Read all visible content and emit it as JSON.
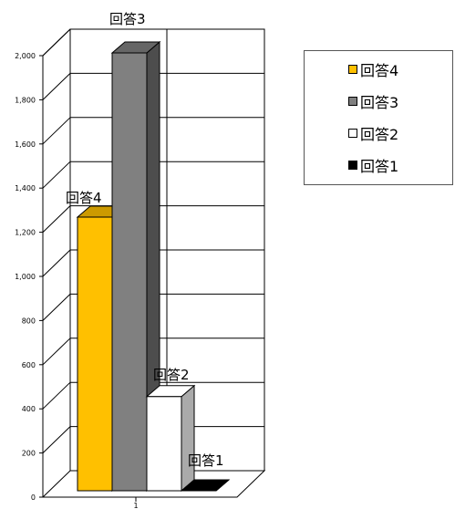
{
  "chart_data": {
    "type": "bar",
    "categories": [
      "1"
    ],
    "series": [
      {
        "name": "回答4",
        "values": [
          1250
        ],
        "color": "#FFC000"
      },
      {
        "name": "回答3",
        "values": [
          2000
        ],
        "color": "#808080"
      },
      {
        "name": "回答2",
        "values": [
          430
        ],
        "color": "#FFFFFF"
      },
      {
        "name": "回答1",
        "values": [
          0
        ],
        "color": "#000000"
      }
    ],
    "ylim": [
      0,
      2000
    ],
    "yticks": [
      "0",
      "200",
      "400",
      "600",
      "800",
      "1,000",
      "1,200",
      "1,400",
      "1,600",
      "1,800",
      "2,000"
    ],
    "xtick": "1",
    "grid": true,
    "perspective": "3d",
    "legend_position": "right",
    "legend_order": [
      "回答4",
      "回答3",
      "回答2",
      "回答1"
    ],
    "data_labels": [
      "回答4",
      "回答3",
      "回答2",
      "回答1"
    ],
    "title": "",
    "xlabel": "",
    "ylabel": ""
  }
}
